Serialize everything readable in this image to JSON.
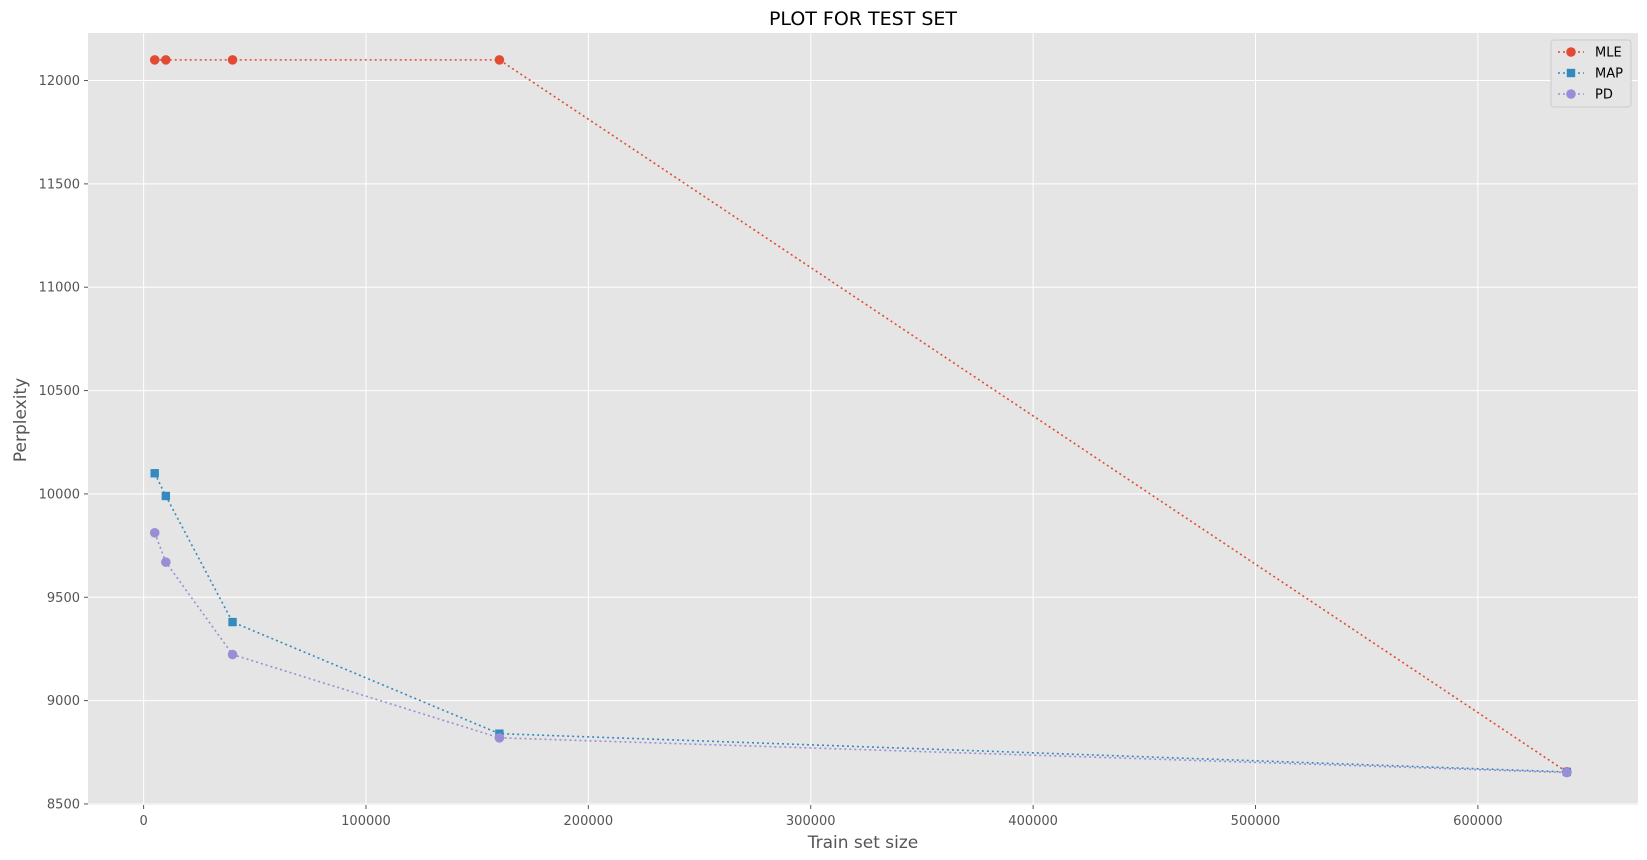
{
  "chart_data": {
    "type": "line",
    "title": "PLOT FOR TEST SET",
    "xlabel": "Train set size",
    "ylabel": "Perplexity",
    "x": [
      5000,
      10000,
      40000,
      160000,
      640000
    ],
    "xlim": [
      -25000,
      672000
    ],
    "ylim": [
      8495,
      12230
    ],
    "xticks": [
      0,
      100000,
      200000,
      300000,
      400000,
      500000,
      600000
    ],
    "xtick_labels": [
      "0",
      "100000",
      "200000",
      "300000",
      "400000",
      "500000",
      "600000"
    ],
    "yticks": [
      8500,
      9000,
      9500,
      10000,
      10500,
      11000,
      11500,
      12000
    ],
    "ytick_labels": [
      "8500",
      "9000",
      "9500",
      "10000",
      "10500",
      "11000",
      "11500",
      "12000"
    ],
    "grid": true,
    "legend_position": "top-right",
    "series": [
      {
        "name": "MLE",
        "marker": "circle",
        "color": "#E24A33",
        "values": [
          12100,
          12100,
          12100,
          12100,
          8655
        ]
      },
      {
        "name": "MAP",
        "marker": "square",
        "color": "#348ABD",
        "values": [
          10100,
          9990,
          9380,
          8840,
          8655
        ]
      },
      {
        "name": "PD",
        "marker": "circle",
        "color": "#988ED5",
        "values": [
          9812,
          9670,
          9223,
          8820,
          8652
        ]
      }
    ]
  }
}
